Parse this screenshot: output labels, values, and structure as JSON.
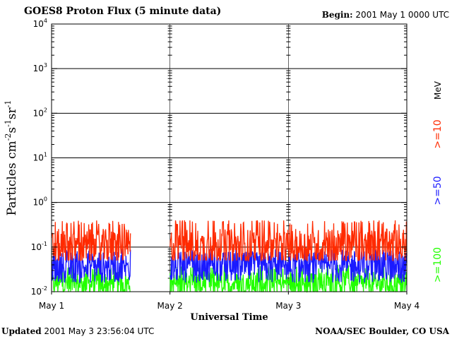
{
  "header": {
    "title": "GOES8 Proton Flux (5 minute data)",
    "begin_label": "Begin:",
    "begin_value": "2001 May 1 0000 UTC"
  },
  "footer": {
    "updated_label": "Updated",
    "updated_value": "2001 May  3 23:56:04 UTC",
    "credit": "NOAA/SEC Boulder, CO USA"
  },
  "chart_data": {
    "type": "line",
    "title": "GOES8 Proton Flux (5 minute data)",
    "xlabel": "Universal Time",
    "ylabel_parts": [
      "Particles cm",
      "-2",
      "s",
      "-1",
      "sr",
      "-1"
    ],
    "y_scale": "log",
    "ylim": [
      0.01,
      10000
    ],
    "y_ticks": [
      {
        "value": 0.01,
        "base": "10",
        "exp": "-2"
      },
      {
        "value": 0.1,
        "base": "10",
        "exp": "-1"
      },
      {
        "value": 1,
        "base": "10",
        "exp": "0"
      },
      {
        "value": 10,
        "base": "10",
        "exp": "1"
      },
      {
        "value": 100,
        "base": "10",
        "exp": "2"
      },
      {
        "value": 1000,
        "base": "10",
        "exp": "3"
      },
      {
        "value": 10000,
        "base": "10",
        "exp": "4"
      }
    ],
    "xlim": [
      "2001-05-01 00:00",
      "2001-05-04 00:00"
    ],
    "x_ticks": [
      {
        "value": "2001-05-01",
        "label": "May 1"
      },
      {
        "value": "2001-05-02",
        "label": "May 2"
      },
      {
        "value": "2001-05-03",
        "label": "May 3"
      },
      {
        "value": "2001-05-04",
        "label": "May 4"
      }
    ],
    "grid": true,
    "units_label": "MeV",
    "series": [
      {
        "name": ">=10",
        "color": "#ff2a00",
        "typical": 0.1,
        "range": [
          0.05,
          0.4
        ]
      },
      {
        "name": ">=50",
        "color": "#1a1aff",
        "typical": 0.035,
        "range": [
          0.015,
          0.09
        ]
      },
      {
        "name": ">=100",
        "color": "#22ff00",
        "typical": 0.015,
        "range": [
          0.01,
          0.04
        ]
      }
    ],
    "data_gap": [
      "2001-05-01 16:00",
      "2001-05-01 24:00"
    ]
  }
}
